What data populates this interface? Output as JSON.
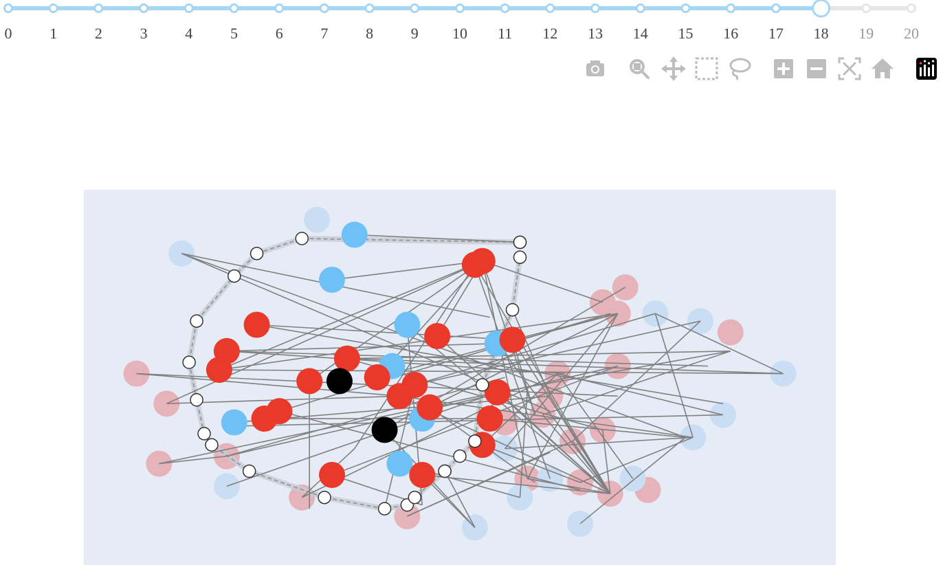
{
  "slider": {
    "ticks": [
      "0",
      "1",
      "2",
      "3",
      "4",
      "5",
      "6",
      "7",
      "8",
      "9",
      "10",
      "11",
      "12",
      "13",
      "14",
      "15",
      "16",
      "17",
      "18",
      "19",
      "20"
    ],
    "current": 18,
    "active_color": "#a6d6f2",
    "inactive_color": "#e6e6e6"
  },
  "modebar": {
    "icons": [
      "camera-icon",
      "zoom-icon",
      "pan-icon",
      "box-select-icon",
      "lasso-icon",
      "zoom-in-icon",
      "zoom-out-icon",
      "autoscale-icon",
      "reset-axes-icon",
      "plotly-logo-icon"
    ]
  },
  "colors": {
    "plot_bg": "#e5ecf6",
    "red": "#e8392a",
    "blue": "#6ec1f7",
    "black": "#000000",
    "faded_red": "#e7b3bb",
    "faded_blue": "#c9def3",
    "edge": "#808080",
    "path": "#9a9a9a"
  },
  "chart_data": {
    "type": "scatter",
    "title": "",
    "xlabel": "",
    "ylabel": "",
    "xlim": [
      0,
      100
    ],
    "ylim": [
      0,
      100
    ],
    "grid": false,
    "nodes_active_red": [
      [
        23,
        64
      ],
      [
        19,
        57
      ],
      [
        18,
        52
      ],
      [
        30,
        49
      ],
      [
        24,
        39
      ],
      [
        26,
        41
      ],
      [
        35,
        55
      ],
      [
        39,
        50
      ],
      [
        42,
        45
      ],
      [
        45,
        24
      ],
      [
        47,
        61
      ],
      [
        44,
        48
      ],
      [
        53,
        32
      ],
      [
        57,
        60
      ],
      [
        46,
        42
      ],
      [
        54,
        39
      ],
      [
        33,
        24
      ],
      [
        55,
        46
      ],
      [
        52,
        80
      ],
      [
        53,
        81
      ]
    ],
    "nodes_active_blue": [
      [
        36,
        88
      ],
      [
        33,
        76
      ],
      [
        43,
        64
      ],
      [
        55,
        59
      ],
      [
        41,
        53
      ],
      [
        20,
        38
      ],
      [
        45,
        39
      ],
      [
        42,
        27
      ]
    ],
    "nodes_active_black": [
      [
        34,
        49
      ],
      [
        40,
        36
      ]
    ],
    "nodes_faded_red": [
      [
        72,
        74
      ],
      [
        69,
        70
      ],
      [
        71,
        67
      ],
      [
        63,
        51
      ],
      [
        7,
        51
      ],
      [
        11,
        43
      ],
      [
        56,
        38
      ],
      [
        69,
        36
      ],
      [
        62,
        45
      ],
      [
        61,
        40
      ],
      [
        71,
        53
      ],
      [
        86,
        62
      ],
      [
        65,
        33
      ],
      [
        66,
        22
      ],
      [
        10,
        27
      ],
      [
        19,
        29
      ],
      [
        59,
        23
      ],
      [
        75,
        20
      ],
      [
        29,
        18
      ],
      [
        43,
        13
      ],
      [
        70,
        19
      ]
    ],
    "nodes_faded_blue": [
      [
        31,
        92
      ],
      [
        13,
        83
      ],
      [
        76,
        67
      ],
      [
        82,
        65
      ],
      [
        93,
        51
      ],
      [
        85,
        40
      ],
      [
        81,
        34
      ],
      [
        73,
        23
      ],
      [
        52,
        10
      ],
      [
        58,
        18
      ],
      [
        19,
        21
      ],
      [
        56,
        31
      ],
      [
        62,
        23
      ],
      [
        66,
        11
      ]
    ],
    "path_nodes": [
      [
        58,
        86
      ],
      [
        58,
        86
      ],
      [
        29,
        87
      ],
      [
        23,
        83
      ],
      [
        20,
        77
      ],
      [
        15,
        65
      ],
      [
        14,
        54
      ],
      [
        15,
        44
      ],
      [
        16,
        35
      ],
      [
        17,
        32
      ],
      [
        22,
        25
      ],
      [
        32,
        18
      ],
      [
        40,
        15
      ],
      [
        43,
        16
      ],
      [
        44,
        18
      ],
      [
        48,
        25
      ],
      [
        48,
        25
      ],
      [
        50,
        29
      ],
      [
        52,
        33
      ],
      [
        53,
        48
      ],
      [
        57,
        68
      ],
      [
        58,
        82
      ]
    ],
    "edges": [
      [
        [
          13,
          83
        ],
        [
          54,
          66
        ]
      ],
      [
        [
          13,
          83
        ],
        [
          62,
          41
        ]
      ],
      [
        [
          13,
          83
        ],
        [
          80,
          34
        ]
      ],
      [
        [
          23,
          64
        ],
        [
          57,
          60
        ]
      ],
      [
        [
          23,
          64
        ],
        [
          85,
          43
        ]
      ],
      [
        [
          19,
          57
        ],
        [
          55,
          59
        ]
      ],
      [
        [
          19,
          57
        ],
        [
          64,
          51
        ]
      ],
      [
        [
          19,
          57
        ],
        [
          83,
          53
        ]
      ],
      [
        [
          18,
          52
        ],
        [
          53,
          81
        ]
      ],
      [
        [
          18,
          52
        ],
        [
          71,
          67
        ]
      ],
      [
        [
          7,
          51
        ],
        [
          42,
          45
        ]
      ],
      [
        [
          7,
          51
        ],
        [
          71,
          45
        ]
      ],
      [
        [
          11,
          43
        ],
        [
          52,
          80
        ]
      ],
      [
        [
          11,
          43
        ],
        [
          42,
          45
        ]
      ],
      [
        [
          26,
          41
        ],
        [
          70,
          67
        ]
      ],
      [
        [
          26,
          41
        ],
        [
          66,
          20
        ]
      ],
      [
        [
          24,
          39
        ],
        [
          54,
          39
        ]
      ],
      [
        [
          30,
          49
        ],
        [
          30,
          15
        ]
      ],
      [
        [
          30,
          49
        ],
        [
          53,
          81
        ]
      ],
      [
        [
          35,
          55
        ],
        [
          86,
          57
        ]
      ],
      [
        [
          35,
          55
        ],
        [
          69,
          36
        ]
      ],
      [
        [
          39,
          50
        ],
        [
          53,
          81
        ]
      ],
      [
        [
          39,
          50
        ],
        [
          71,
          67
        ]
      ],
      [
        [
          42,
          45
        ],
        [
          81,
          34
        ]
      ],
      [
        [
          42,
          45
        ],
        [
          70,
          19
        ]
      ],
      [
        [
          44,
          48
        ],
        [
          40,
          15
        ]
      ],
      [
        [
          44,
          48
        ],
        [
          76,
          67
        ]
      ],
      [
        [
          46,
          42
        ],
        [
          60,
          22
        ]
      ],
      [
        [
          46,
          42
        ],
        [
          71,
          67
        ]
      ],
      [
        [
          47,
          61
        ],
        [
          70,
          19
        ]
      ],
      [
        [
          47,
          61
        ],
        [
          53,
          81
        ]
      ],
      [
        [
          52,
          80
        ],
        [
          70,
          19
        ]
      ],
      [
        [
          52,
          80
        ],
        [
          36,
          31
        ]
      ],
      [
        [
          53,
          81
        ],
        [
          60,
          40
        ]
      ],
      [
        [
          53,
          81
        ],
        [
          69,
          70
        ]
      ],
      [
        [
          53,
          81
        ],
        [
          59,
          23
        ]
      ],
      [
        [
          54,
          39
        ],
        [
          80,
          34
        ]
      ],
      [
        [
          55,
          46
        ],
        [
          70,
          19
        ]
      ],
      [
        [
          55,
          46
        ],
        [
          86,
          57
        ]
      ],
      [
        [
          57,
          60
        ],
        [
          70,
          19
        ]
      ],
      [
        [
          57,
          60
        ],
        [
          60,
          40
        ]
      ],
      [
        [
          57,
          60
        ],
        [
          71,
          67
        ]
      ],
      [
        [
          43,
          64
        ],
        [
          70,
          19
        ]
      ],
      [
        [
          43,
          64
        ],
        [
          45,
          16
        ]
      ],
      [
        [
          55,
          59
        ],
        [
          70,
          19
        ]
      ],
      [
        [
          53,
          32
        ],
        [
          66,
          22
        ]
      ],
      [
        [
          53,
          32
        ],
        [
          63,
          51
        ]
      ],
      [
        [
          45,
          24
        ],
        [
          70,
          19
        ]
      ],
      [
        [
          45,
          24
        ],
        [
          52,
          10
        ]
      ],
      [
        [
          40,
          36
        ],
        [
          52,
          10
        ]
      ],
      [
        [
          40,
          36
        ],
        [
          72,
          74
        ]
      ],
      [
        [
          33,
          24
        ],
        [
          71,
          53
        ]
      ],
      [
        [
          33,
          24
        ],
        [
          45,
          16
        ]
      ],
      [
        [
          10,
          27
        ],
        [
          19,
          29
        ]
      ],
      [
        [
          10,
          27
        ],
        [
          55,
          46
        ]
      ],
      [
        [
          19,
          29
        ],
        [
          56,
          50
        ]
      ],
      [
        [
          19,
          29
        ],
        [
          71,
          53
        ]
      ],
      [
        [
          29,
          18
        ],
        [
          36,
          31
        ]
      ],
      [
        [
          29,
          18
        ],
        [
          63,
          51
        ]
      ],
      [
        [
          43,
          13
        ],
        [
          62,
          30
        ]
      ],
      [
        [
          43,
          13
        ],
        [
          65,
          33
        ]
      ],
      [
        [
          59,
          23
        ],
        [
          71,
          67
        ]
      ],
      [
        [
          59,
          23
        ],
        [
          70,
          19
        ]
      ],
      [
        [
          61,
          40
        ],
        [
          70,
          19
        ]
      ],
      [
        [
          61,
          40
        ],
        [
          86,
          57
        ]
      ],
      [
        [
          62,
          45
        ],
        [
          70,
          19
        ]
      ],
      [
        [
          62,
          45
        ],
        [
          57,
          68
        ]
      ],
      [
        [
          65,
          33
        ],
        [
          70,
          19
        ]
      ],
      [
        [
          69,
          36
        ],
        [
          70,
          19
        ]
      ],
      [
        [
          66,
          22
        ],
        [
          81,
          34
        ]
      ],
      [
        [
          66,
          11
        ],
        [
          80,
          34
        ]
      ],
      [
        [
          76,
          67
        ],
        [
          93,
          51
        ]
      ],
      [
        [
          76,
          67
        ],
        [
          81,
          34
        ]
      ],
      [
        [
          93,
          51
        ],
        [
          35,
          55
        ]
      ],
      [
        [
          93,
          51
        ],
        [
          18,
          52
        ]
      ],
      [
        [
          82,
          65
        ],
        [
          44,
          48
        ]
      ],
      [
        [
          82,
          65
        ],
        [
          65,
          33
        ]
      ],
      [
        [
          85,
          40
        ],
        [
          20,
          37
        ]
      ],
      [
        [
          85,
          40
        ],
        [
          63,
          51
        ]
      ],
      [
        [
          81,
          34
        ],
        [
          56,
          31
        ]
      ],
      [
        [
          73,
          23
        ],
        [
          63,
          51
        ]
      ],
      [
        [
          52,
          10
        ],
        [
          48,
          25
        ]
      ],
      [
        [
          58,
          18
        ],
        [
          59,
          47
        ]
      ],
      [
        [
          19,
          21
        ],
        [
          55,
          46
        ]
      ],
      [
        [
          56,
          31
        ],
        [
          71,
          67
        ]
      ],
      [
        [
          62,
          23
        ],
        [
          52,
          80
        ]
      ],
      [
        [
          42,
          27
        ],
        [
          58,
          18
        ]
      ],
      [
        [
          36,
          88
        ],
        [
          58,
          86
        ]
      ],
      [
        [
          33,
          76
        ],
        [
          53,
          81
        ]
      ],
      [
        [
          20,
          38
        ],
        [
          62,
          45
        ]
      ]
    ]
  }
}
